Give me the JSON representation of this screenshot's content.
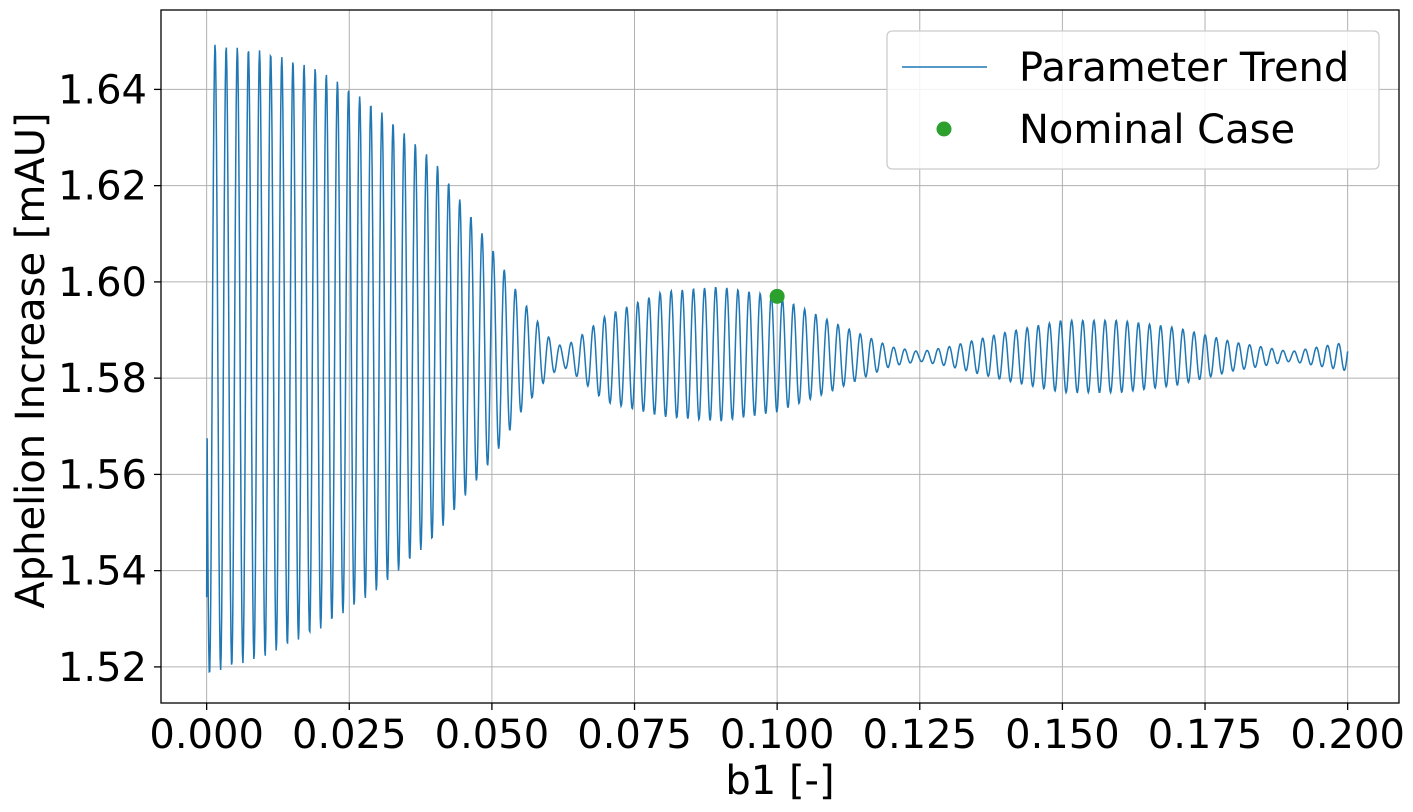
{
  "chart_data": {
    "type": "line",
    "title": "",
    "xlabel": "b1 [-]",
    "ylabel": "Aphelion Increase [mAU]",
    "xlim": [
      -0.008,
      0.209
    ],
    "ylim": [
      1.5125,
      1.6565
    ],
    "xticks": [
      0.0,
      0.025,
      0.05,
      0.075,
      0.1,
      0.125,
      0.15,
      0.175,
      0.2
    ],
    "xtick_labels": [
      "0.000",
      "0.025",
      "0.050",
      "0.075",
      "0.100",
      "0.125",
      "0.150",
      "0.175",
      "0.200"
    ],
    "yticks": [
      1.52,
      1.54,
      1.56,
      1.58,
      1.6,
      1.62,
      1.64
    ],
    "ytick_labels": [
      "1.52",
      "1.54",
      "1.56",
      "1.58",
      "1.60",
      "1.62",
      "1.64"
    ],
    "grid": true,
    "legend_position": "top-right",
    "series": [
      {
        "name": "Parameter Trend",
        "kind": "line",
        "color": "#1f77b4",
        "oscillation_period": 0.00195,
        "center": [
          [
            0.0,
            1.584
          ],
          [
            0.01,
            1.585
          ],
          [
            0.02,
            1.586
          ],
          [
            0.03,
            1.586
          ],
          [
            0.04,
            1.586
          ],
          [
            0.05,
            1.585
          ],
          [
            0.06,
            1.5845
          ],
          [
            0.07,
            1.584
          ],
          [
            0.08,
            1.585
          ],
          [
            0.09,
            1.585
          ],
          [
            0.1,
            1.585
          ],
          [
            0.11,
            1.5845
          ],
          [
            0.12,
            1.5845
          ],
          [
            0.13,
            1.5845
          ],
          [
            0.14,
            1.5845
          ],
          [
            0.15,
            1.5845
          ],
          [
            0.16,
            1.5845
          ],
          [
            0.17,
            1.5845
          ],
          [
            0.18,
            1.5845
          ],
          [
            0.19,
            1.5845
          ],
          [
            0.2,
            1.5845
          ]
        ],
        "amplitude": [
          [
            0.0,
            0.066
          ],
          [
            0.002,
            0.065
          ],
          [
            0.01,
            0.063
          ],
          [
            0.02,
            0.058
          ],
          [
            0.03,
            0.05
          ],
          [
            0.04,
            0.039
          ],
          [
            0.05,
            0.022
          ],
          [
            0.055,
            0.012
          ],
          [
            0.06,
            0.004
          ],
          [
            0.0625,
            0.002
          ],
          [
            0.065,
            0.004
          ],
          [
            0.07,
            0.009
          ],
          [
            0.08,
            0.013
          ],
          [
            0.09,
            0.014
          ],
          [
            0.1,
            0.012
          ],
          [
            0.11,
            0.007
          ],
          [
            0.12,
            0.002
          ],
          [
            0.125,
            0.001
          ],
          [
            0.13,
            0.002
          ],
          [
            0.14,
            0.005
          ],
          [
            0.15,
            0.0075
          ],
          [
            0.16,
            0.0075
          ],
          [
            0.17,
            0.006
          ],
          [
            0.18,
            0.003
          ],
          [
            0.19,
            0.001
          ],
          [
            0.2,
            0.003
          ]
        ],
        "start_value": 1.5345
      },
      {
        "name": "Nominal Case",
        "kind": "marker",
        "color": "#2ca02c",
        "points": [
          {
            "x": 0.1,
            "y": 1.597
          }
        ]
      }
    ]
  }
}
